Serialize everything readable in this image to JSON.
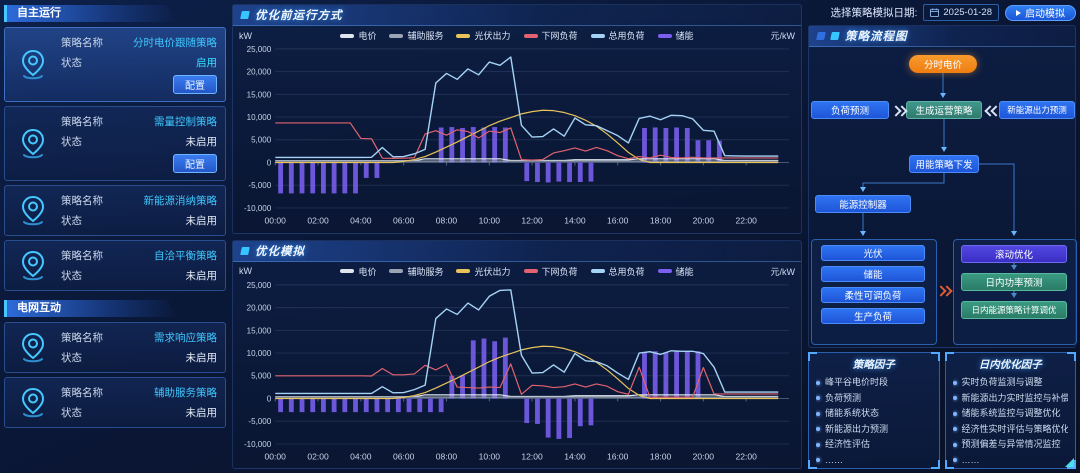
{
  "topbar": {
    "date_label": "选择策略模拟日期:",
    "date_value": "2025-01-28",
    "run_button": "启动模拟"
  },
  "sidebar": {
    "labels": {
      "name": "策略名称",
      "status": "状态",
      "config": "配置"
    },
    "sections": [
      {
        "title": "自主运行",
        "cards": [
          {
            "name": "分时电价跟随策略",
            "status": "启用",
            "enabled": true,
            "has_config": true,
            "highlight": true
          },
          {
            "name": "需量控制策略",
            "status": "未启用",
            "enabled": false,
            "has_config": true,
            "highlight": false
          },
          {
            "name": "新能源消纳策略",
            "status": "未启用",
            "enabled": false,
            "has_config": false,
            "highlight": false
          },
          {
            "name": "自洽平衡策略",
            "status": "未启用",
            "enabled": false,
            "has_config": false,
            "highlight": false
          }
        ]
      },
      {
        "title": "电网互动",
        "cards": [
          {
            "name": "需求响应策略",
            "status": "未启用",
            "enabled": false,
            "has_config": false,
            "highlight": false
          },
          {
            "name": "辅助服务策略",
            "status": "未启用",
            "enabled": false,
            "has_config": false,
            "highlight": false
          }
        ]
      }
    ]
  },
  "flowchart": {
    "title": "策略流程图",
    "nodes": {
      "tou": "分时电价",
      "load_forecast": "负荷预测",
      "generate": "生成运营策略",
      "renewable_forecast": "新能源出力预测",
      "dispatch": "用能策略下发",
      "controller": "能源控制器",
      "pv": "光伏",
      "ess": "储能",
      "flexible_load": "柔性可调负荷",
      "production_load": "生产负荷",
      "rolling_opt": "滚动优化",
      "intraday_power": "日内功率预测",
      "intraday_strategy": "日内能源策略计算调优"
    }
  },
  "factors": [
    {
      "title": "策略因子",
      "items": [
        "峰平谷电价时段",
        "负荷预测",
        "储能系统状态",
        "新能源出力预测",
        "经济性评估",
        "……"
      ]
    },
    {
      "title": "日内优化因子",
      "items": [
        "实时负荷监测与调整",
        "新能源出力实时监控与补偿",
        "储能系统监控与调整优化",
        "经济性实时评估与策略优化",
        "预测偏差与异常情况监控",
        "……"
      ]
    }
  ],
  "chart_data": [
    {
      "type": "mixed-line-bar",
      "title": "优化前运行方式",
      "unit_left": "kW",
      "unit_right": "元/kW",
      "ylim": [
        -10000,
        25000
      ],
      "y_ticks": [
        25000,
        20000,
        15000,
        10000,
        5000,
        0,
        -5000,
        -10000
      ],
      "y_tick_labels": [
        "25,000",
        "20,000",
        "15,000",
        "10,000",
        "5,000",
        "0",
        "-5,000",
        "-10,000"
      ],
      "x_labels": [
        "00:00",
        "02:00",
        "04:00",
        "06:00",
        "08:00",
        "10:00",
        "12:00",
        "14:00",
        "16:00",
        "18:00",
        "20:00",
        "22:00"
      ],
      "x_label_hours": [
        0,
        2,
        4,
        6,
        8,
        10,
        12,
        14,
        16,
        18,
        20,
        22
      ],
      "x_step_hours": 0.5,
      "right_axis_plot_scale": 1000,
      "grid": true,
      "legend_position": "top-center",
      "series": [
        {
          "name": "电价",
          "type": "line",
          "axis": "right",
          "unit": "元/kW",
          "color": "#dfe5ee",
          "values": [
            0.4,
            0.4,
            0.4,
            0.4,
            0.4,
            0.4,
            0.4,
            0.4,
            0.4,
            0.4,
            0.4,
            0.4,
            0.4,
            0.4,
            0.8,
            0.8,
            0.8,
            0.8,
            0.8,
            0.8,
            0.8,
            0.8,
            0.45,
            0.45,
            0.45,
            0.45,
            0.45,
            0.45,
            0.6,
            0.6,
            0.6,
            0.6,
            0.6,
            0.6,
            0.8,
            0.8,
            0.8,
            0.8,
            0.8,
            0.8,
            0.8,
            0.8,
            0.45,
            0.45,
            0.45,
            0.45,
            0.45,
            0.45
          ]
        },
        {
          "name": "辅助服务",
          "type": "line",
          "axis": "right",
          "unit": "元/kW",
          "color": "#9aa4b4",
          "values": [
            0.3,
            0.3,
            0.3,
            0.3,
            0.3,
            0.3,
            0.3,
            0.3,
            0.3,
            0.3,
            0.3,
            0.3,
            0.3,
            0.3,
            0.3,
            0.3,
            0.3,
            0.3,
            0.3,
            0.3,
            0.3,
            0.3,
            0.3,
            0.3,
            0.3,
            0.3,
            0.3,
            0.3,
            0.3,
            0.3,
            0.3,
            0.3,
            0.3,
            0.3,
            0.3,
            0.3,
            0.3,
            0.3,
            0.3,
            0.3,
            0.3,
            0.3,
            0.3,
            0.3,
            0.3,
            0.3,
            0.3,
            0.3
          ]
        },
        {
          "name": "光伏出力",
          "type": "line",
          "axis": "left",
          "unit": "kW",
          "color": "#e7c35a",
          "values": [
            0,
            0,
            0,
            0,
            0,
            0,
            0,
            0,
            0,
            0,
            0,
            0,
            250,
            650,
            1300,
            2300,
            3400,
            4500,
            5700,
            6900,
            8100,
            9100,
            9900,
            10700,
            11200,
            11500,
            11400,
            11000,
            10300,
            9300,
            8000,
            6300,
            4300,
            2200,
            700,
            0,
            0,
            0,
            0,
            0,
            0,
            0,
            0,
            0,
            0,
            0,
            0,
            0
          ]
        },
        {
          "name": "下网负荷",
          "type": "line",
          "axis": "left",
          "unit": "kW",
          "color": "#e2636f",
          "values": [
            8700,
            8700,
            8700,
            8700,
            8700,
            8700,
            8700,
            8700,
            5300,
            5200,
            950,
            900,
            950,
            1050,
            6300,
            7000,
            6000,
            7200,
            6800,
            5400,
            6900,
            6600,
            7600,
            650,
            550,
            650,
            2100,
            2600,
            3200,
            2500,
            3300,
            2600,
            1500,
            850,
            1300,
            1000,
            1600,
            1100,
            1000,
            1150,
            1000,
            1000,
            1000,
            1000,
            1000,
            1000,
            1000,
            1000
          ]
        },
        {
          "name": "总用负荷",
          "type": "line",
          "axis": "left",
          "unit": "kW",
          "color": "#a5d3f5",
          "values": [
            1100,
            1100,
            1100,
            1100,
            1100,
            1100,
            1100,
            1100,
            1100,
            1150,
            3300,
            1250,
            1300,
            1900,
            2900,
            17500,
            19600,
            18300,
            20600,
            19300,
            22100,
            21400,
            23200,
            8200,
            5600,
            5700,
            7400,
            5800,
            9800,
            8300,
            8100,
            7000,
            5900,
            4300,
            9700,
            10200,
            9400,
            10400,
            10300,
            9600,
            7100,
            6900,
            1500,
            1450,
            1400,
            1400,
            1400,
            1400
          ]
        },
        {
          "name": "储能",
          "type": "bar",
          "axis": "left",
          "unit": "kW",
          "color": "#7a5ff0",
          "values": [
            -6800,
            -6800,
            -6800,
            -6800,
            -6800,
            -6800,
            -6800,
            -6800,
            -3400,
            -3400,
            0,
            0,
            0,
            0,
            0,
            7700,
            7800,
            7600,
            7800,
            7700,
            7800,
            7700,
            0,
            -4100,
            -4300,
            -4400,
            -4200,
            -4300,
            -4300,
            -4200,
            0,
            0,
            0,
            0,
            7600,
            7700,
            7600,
            7700,
            7600,
            4900,
            4900,
            4800,
            0,
            0,
            0,
            0,
            0,
            0
          ]
        }
      ]
    },
    {
      "type": "mixed-line-bar",
      "title": "优化模拟",
      "unit_left": "kW",
      "unit_right": "元/kW",
      "ylim": [
        -10000,
        25000
      ],
      "y_ticks": [
        25000,
        20000,
        15000,
        10000,
        5000,
        0,
        -5000,
        -10000
      ],
      "y_tick_labels": [
        "25,000",
        "20,000",
        "15,000",
        "10,000",
        "5,000",
        "0",
        "-5,000",
        "-10,000"
      ],
      "x_labels": [
        "00:00",
        "02:00",
        "04:00",
        "06:00",
        "08:00",
        "10:00",
        "12:00",
        "14:00",
        "16:00",
        "18:00",
        "20:00",
        "22:00"
      ],
      "x_label_hours": [
        0,
        2,
        4,
        6,
        8,
        10,
        12,
        14,
        16,
        18,
        20,
        22
      ],
      "x_step_hours": 0.5,
      "right_axis_plot_scale": 1000,
      "grid": true,
      "legend_position": "top-center",
      "series": [
        {
          "name": "电价",
          "type": "line",
          "axis": "right",
          "unit": "元/kW",
          "color": "#dfe5ee",
          "values": [
            0.4,
            0.4,
            0.4,
            0.4,
            0.4,
            0.4,
            0.4,
            0.4,
            0.4,
            0.4,
            0.4,
            0.4,
            0.4,
            0.4,
            0.8,
            0.8,
            0.8,
            0.8,
            0.8,
            0.8,
            0.8,
            0.8,
            0.45,
            0.45,
            0.45,
            0.45,
            0.45,
            0.45,
            0.6,
            0.6,
            0.6,
            0.6,
            0.6,
            0.6,
            0.8,
            0.8,
            0.8,
            0.8,
            0.8,
            0.8,
            0.8,
            0.8,
            0.45,
            0.45,
            0.45,
            0.45,
            0.45,
            0.45
          ]
        },
        {
          "name": "辅助服务",
          "type": "line",
          "axis": "right",
          "unit": "元/kW",
          "color": "#9aa4b4",
          "values": [
            0.3,
            0.3,
            0.3,
            0.3,
            0.3,
            0.3,
            0.3,
            0.3,
            0.3,
            0.3,
            0.3,
            0.3,
            0.3,
            0.3,
            0.3,
            0.3,
            0.3,
            0.3,
            0.3,
            0.3,
            0.3,
            0.3,
            0.3,
            0.3,
            0.3,
            0.3,
            0.3,
            0.3,
            0.3,
            0.3,
            0.3,
            0.3,
            0.3,
            0.3,
            0.3,
            0.3,
            0.3,
            0.3,
            0.3,
            0.3,
            0.3,
            0.3,
            0.3,
            0.3,
            0.3,
            0.3,
            0.3,
            0.3
          ]
        },
        {
          "name": "光伏出力",
          "type": "line",
          "axis": "left",
          "unit": "kW",
          "color": "#e7c35a",
          "values": [
            0,
            0,
            0,
            0,
            0,
            0,
            0,
            0,
            0,
            0,
            0,
            0,
            250,
            650,
            1300,
            2300,
            3400,
            4500,
            5700,
            6900,
            8100,
            9100,
            9900,
            10700,
            11200,
            11500,
            11400,
            11000,
            10300,
            9300,
            8000,
            6300,
            4300,
            2200,
            700,
            0,
            0,
            0,
            0,
            0,
            0,
            0,
            0,
            0,
            0,
            0,
            0,
            0
          ]
        },
        {
          "name": "下网负荷",
          "type": "line",
          "axis": "left",
          "unit": "kW",
          "color": "#e2636f",
          "values": [
            5000,
            5000,
            5000,
            5000,
            5000,
            5000,
            5000,
            5000,
            5000,
            4950,
            6600,
            5200,
            5200,
            5400,
            7300,
            6300,
            7500,
            2500,
            2400,
            2300,
            2500,
            2400,
            7600,
            900,
            2900,
            2800,
            2400,
            2600,
            3200,
            2500,
            3200,
            2700,
            1500,
            900,
            6900,
            300,
            280,
            300,
            280,
            300,
            6800,
            1000,
            1000,
            1000,
            1000,
            1000,
            1000,
            1000
          ]
        },
        {
          "name": "总用负荷",
          "type": "line",
          "axis": "left",
          "unit": "kW",
          "color": "#a5d3f5",
          "values": [
            1100,
            1100,
            1100,
            1100,
            1100,
            1100,
            1100,
            1100,
            1100,
            1100,
            2600,
            1250,
            1300,
            1950,
            2950,
            17600,
            19700,
            18500,
            21000,
            19500,
            22500,
            23800,
            23900,
            9500,
            5600,
            5700,
            7400,
            5800,
            9900,
            8300,
            8100,
            7200,
            5600,
            4200,
            10000,
            10300,
            9700,
            10500,
            10400,
            10400,
            9900,
            6900,
            1400,
            1400,
            1400,
            1400,
            1400,
            1400
          ]
        },
        {
          "name": "储能",
          "type": "bar",
          "axis": "left",
          "unit": "kW",
          "color": "#7a5ff0",
          "values": [
            -3000,
            -3000,
            -3000,
            -3000,
            -3000,
            -3000,
            -3000,
            -3000,
            -3000,
            -3000,
            -3000,
            -3000,
            -3000,
            -3000,
            -3000,
            -3000,
            5000,
            5100,
            12800,
            13200,
            12600,
            13400,
            0,
            -5400,
            -5600,
            -8600,
            -8900,
            -8700,
            -6100,
            -5900,
            0,
            0,
            0,
            0,
            10200,
            10400,
            10100,
            10500,
            10300,
            10400,
            0,
            0,
            0,
            0,
            0,
            0,
            0,
            0
          ]
        }
      ]
    }
  ]
}
